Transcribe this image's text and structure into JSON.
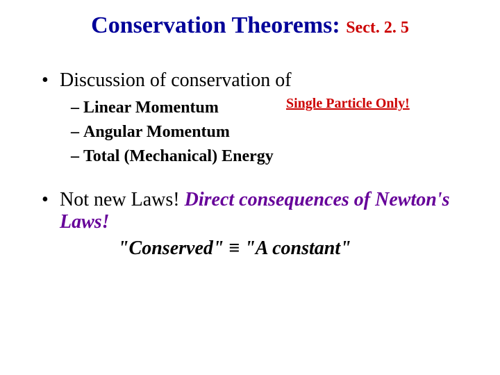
{
  "colors": {
    "title_main": "#000099",
    "title_sect": "#cc0000",
    "annotation": "#cc0000",
    "purple": "#660099",
    "body_text": "#000000",
    "background": "#ffffff"
  },
  "fonts": {
    "family": "Times New Roman",
    "title_size_pt": 34,
    "sect_size_pt": 24,
    "body_size_pt": 28,
    "sub_size_pt": 24,
    "annotation_size_pt": 20
  },
  "title": {
    "main": "Conservation Theorems:",
    "section": "Sect. 2. 5"
  },
  "bullet1": {
    "text": "Discussion of conservation of",
    "subitems": [
      "Linear Momentum",
      "Angular Momentum",
      "Total (Mechanical) Energy"
    ],
    "annotation": "Single Particle Only!"
  },
  "bullet2": {
    "lead": "Not new Laws!",
    "consequence": "Direct consequences of Newton's Laws!",
    "conserved_left": "\"Conserved\"",
    "equiv": "≡",
    "conserved_right": "\"A constant\""
  },
  "glyphs": {
    "bullet": "•",
    "dash": "–"
  }
}
